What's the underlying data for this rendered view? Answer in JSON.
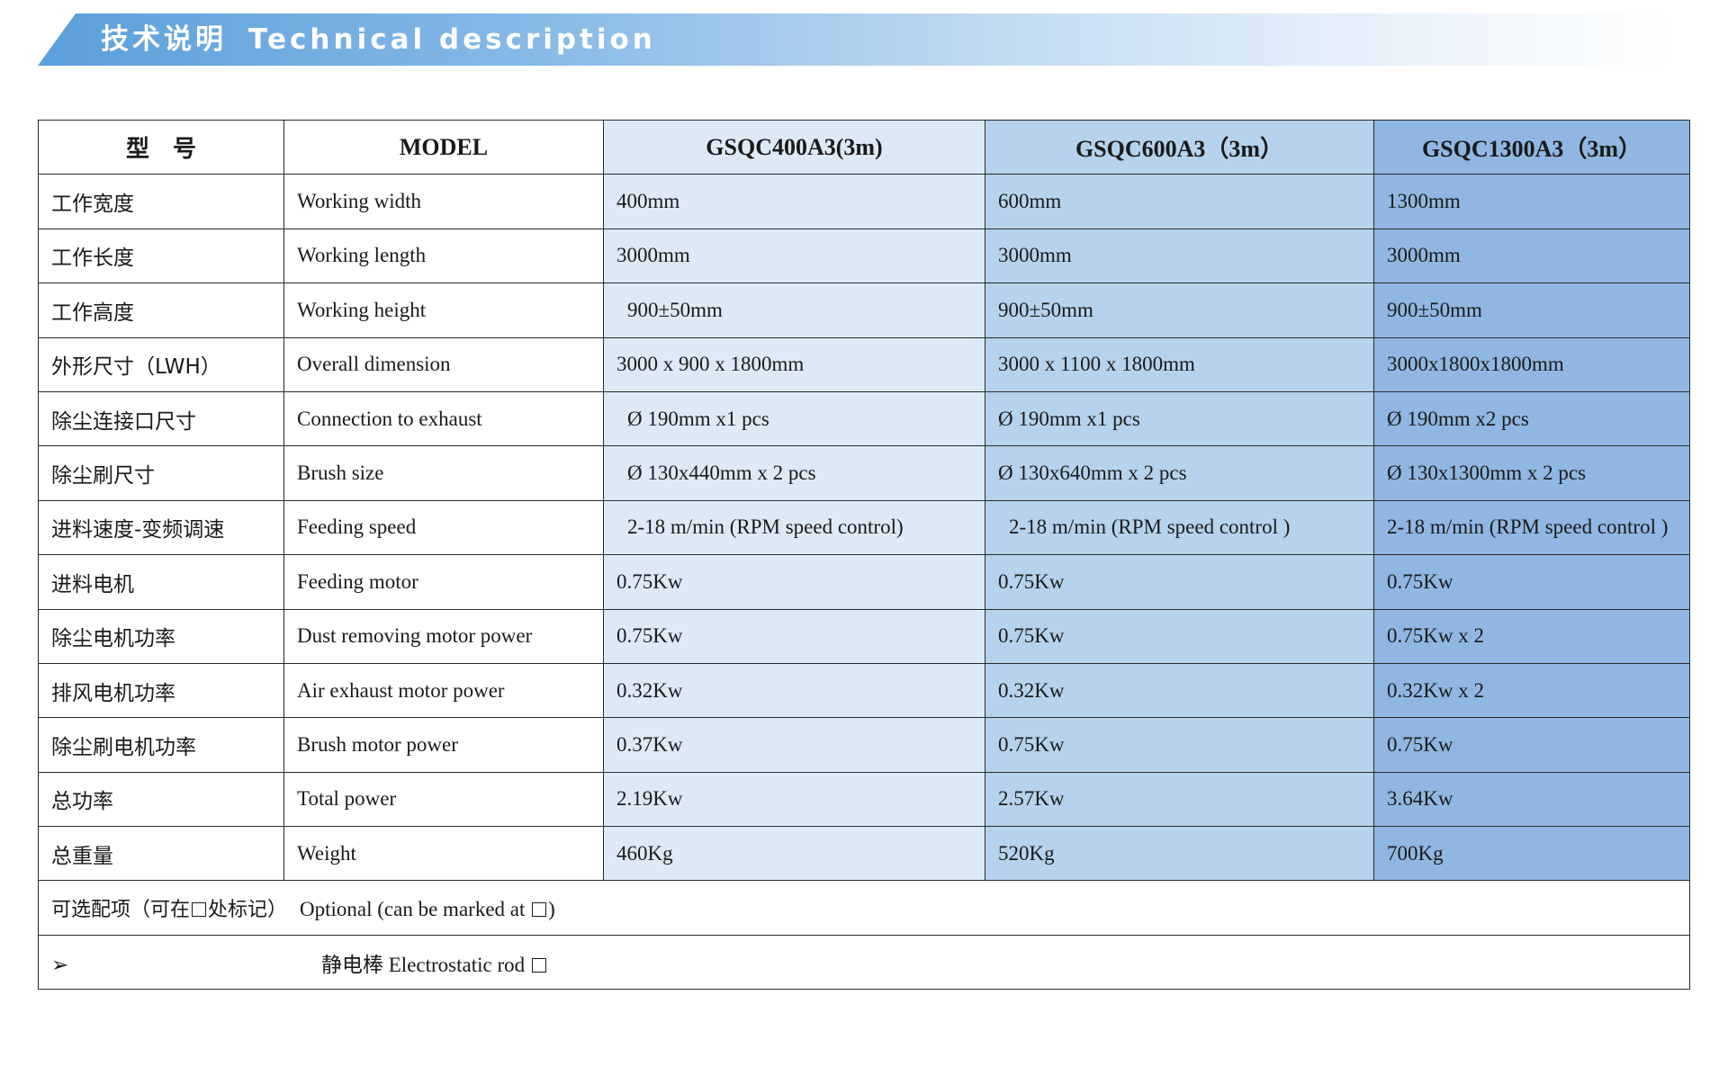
{
  "banner": {
    "title_zh": "技术说明",
    "title_en": "Technical description"
  },
  "table": {
    "header": {
      "label_zh": "型　号",
      "label_en": "MODEL",
      "models": [
        "GSQC400A3(3m)",
        "GSQC600A3（3m）",
        "GSQC1300A3（3m）"
      ]
    },
    "rows": [
      {
        "zh": "工作宽度",
        "en": "Working width",
        "v": [
          "400mm",
          "600mm",
          "1300mm"
        ]
      },
      {
        "zh": "工作长度",
        "en": "Working length",
        "v": [
          "3000mm",
          "3000mm",
          "3000mm"
        ]
      },
      {
        "zh": "工作高度",
        "en": "Working height",
        "v": [
          "900±50mm",
          "900±50mm",
          "900±50mm"
        ]
      },
      {
        "zh": "外形尺寸（LWH）",
        "en": "Overall dimension",
        "v": [
          "3000 x 900 x 1800mm",
          "3000 x 1100 x 1800mm",
          "3000x1800x1800mm"
        ]
      },
      {
        "zh": "除尘连接口尺寸",
        "en": "Connection to exhaust",
        "v": [
          "Ø 190mm x1 pcs",
          "Ø 190mm x1 pcs",
          "Ø 190mm x2 pcs"
        ]
      },
      {
        "zh": "除尘刷尺寸",
        "en": "Brush size",
        "v": [
          "Ø 130x440mm x 2 pcs",
          "Ø 130x640mm x 2 pcs",
          "Ø 130x1300mm x 2 pcs"
        ]
      },
      {
        "zh": "进料速度-变频调速",
        "en": "Feeding speed",
        "v": [
          "2-18 m/min (RPM speed control)",
          "2-18 m/min (RPM speed control )",
          "2-18 m/min (RPM speed control )"
        ]
      },
      {
        "zh": "进料电机",
        "en": "Feeding motor",
        "v": [
          "0.75Kw",
          "0.75Kw",
          "0.75Kw"
        ]
      },
      {
        "zh": "除尘电机功率",
        "en": "Dust removing motor power",
        "v": [
          "0.75Kw",
          "0.75Kw",
          "0.75Kw x 2"
        ]
      },
      {
        "zh": "排风电机功率",
        "en": "Air exhaust motor power",
        "v": [
          "0.32Kw",
          "0.32Kw",
          "0.32Kw x 2"
        ]
      },
      {
        "zh": "除尘刷电机功率",
        "en": "Brush motor power",
        "v": [
          "0.37Kw",
          "0.75Kw",
          "0.75Kw"
        ]
      },
      {
        "zh": "总功率",
        "en": "Total power",
        "v": [
          "2.19Kw",
          "2.57Kw",
          "3.64Kw"
        ]
      },
      {
        "zh": "总重量",
        "en": "Weight",
        "v": [
          "460Kg",
          "520Kg",
          "700Kg"
        ]
      }
    ],
    "optional": {
      "zh_before": "可选配项（可在",
      "zh_after": "处标记）",
      "en": "Optional (can be marked at",
      "en_close": ")"
    },
    "rod": {
      "bullet": "➢",
      "label": "静电棒 Electrostatic rod"
    }
  },
  "colors": {
    "col1": "#ddeaf6",
    "col2": "#b6d2ec",
    "col3": "#8fb7e1",
    "banner": "#5a9fdc"
  }
}
